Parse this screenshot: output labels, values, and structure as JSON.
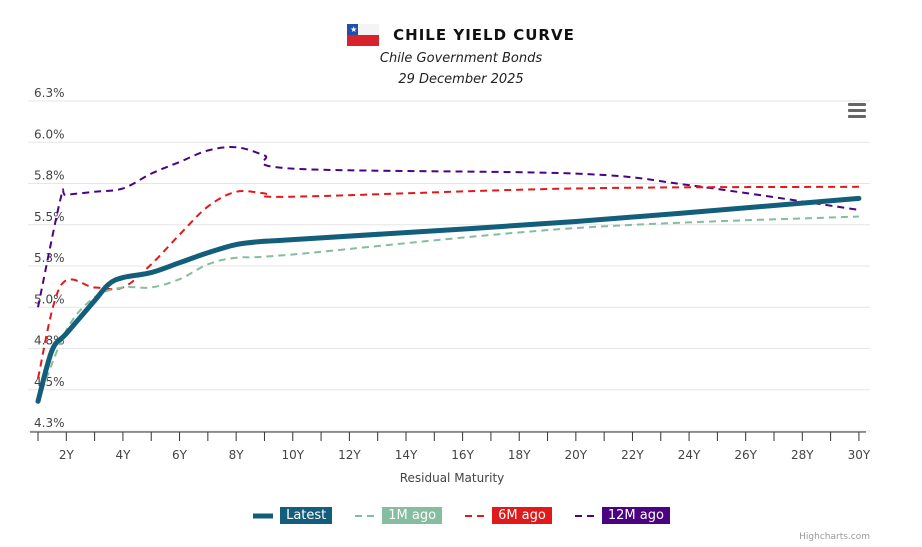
{
  "header": {
    "title": "CHILE YIELD CURVE",
    "subtitle": "Chile Government Bonds",
    "date": "29 December 2025",
    "flag_icon": "chile-flag-icon"
  },
  "credit": "Highcharts.com",
  "chart_data": {
    "type": "line",
    "title": "CHILE YIELD CURVE",
    "xlabel": "Residual Maturity",
    "ylabel": "",
    "xlim": [
      1,
      30.25
    ],
    "ylim": [
      4.25,
      6.25
    ],
    "grid": true,
    "legend_placement": "bottom",
    "x_ticks": [
      2,
      4,
      6,
      8,
      10,
      12,
      14,
      16,
      18,
      20,
      22,
      24,
      26,
      28,
      30
    ],
    "x_tick_labels": [
      "2Y",
      "4Y",
      "6Y",
      "8Y",
      "10Y",
      "12Y",
      "14Y",
      "16Y",
      "18Y",
      "20Y",
      "22Y",
      "24Y",
      "26Y",
      "28Y",
      "30Y"
    ],
    "y_ticks": [
      4.25,
      4.5,
      4.75,
      5.0,
      5.25,
      5.5,
      5.75,
      6.0,
      6.25
    ],
    "y_tick_labels": [
      "4.3%",
      "4.5%",
      "4.8%",
      "5.0%",
      "5.3%",
      "5.5%",
      "5.8%",
      "6.0%",
      "6.3%"
    ],
    "series": [
      {
        "name": "Latest",
        "color": "#135e7a",
        "dash": "solid",
        "x": [
          1,
          1.5,
          2,
          3,
          3.5,
          4,
          5,
          6,
          7,
          8,
          9,
          10,
          20,
          30
        ],
        "y": [
          4.43,
          4.74,
          4.84,
          5.04,
          5.14,
          5.18,
          5.21,
          5.27,
          5.33,
          5.38,
          5.4,
          5.41,
          5.52,
          5.66
        ]
      },
      {
        "name": "1M ago",
        "color": "#86bc9f",
        "dash": "dash",
        "x": [
          1,
          2,
          3,
          4,
          5,
          6,
          7,
          8,
          10,
          20,
          30
        ],
        "y": [
          4.43,
          4.86,
          5.06,
          5.12,
          5.12,
          5.17,
          5.26,
          5.3,
          5.32,
          5.48,
          5.55
        ]
      },
      {
        "name": "6M ago",
        "color": "#e0191b",
        "dash": "dash",
        "x": [
          1,
          1.8,
          3,
          4,
          5,
          6,
          7,
          8,
          9,
          10,
          20,
          30
        ],
        "y": [
          4.57,
          5.13,
          5.12,
          5.12,
          5.26,
          5.44,
          5.61,
          5.7,
          5.69,
          5.67,
          5.72,
          5.73
        ]
      },
      {
        "name": "12M ago",
        "color": "#4b0382",
        "dash": "dash",
        "x": [
          1,
          1.8,
          2,
          3,
          4,
          5,
          6,
          7,
          8,
          9,
          10,
          20,
          24,
          30
        ],
        "y": [
          5.0,
          5.66,
          5.68,
          5.7,
          5.72,
          5.81,
          5.88,
          5.95,
          5.97,
          5.92,
          5.84,
          5.81,
          5.74,
          5.59
        ]
      }
    ]
  }
}
